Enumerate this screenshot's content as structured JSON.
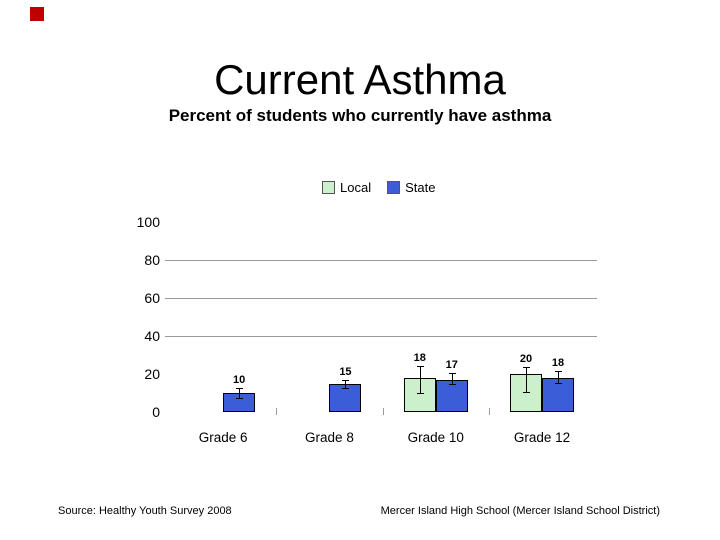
{
  "slide": {
    "title": "Current Asthma",
    "subtitle": "Percent of students who currently have asthma",
    "footer_left": "Source: Healthy Youth Survey 2008",
    "footer_right": "Mercer Island High School (Mercer Island School District)",
    "accent_color": "#c00000"
  },
  "chart_data": {
    "type": "bar",
    "title": "Current Asthma",
    "subtitle": "Percent of students who currently have asthma",
    "categories": [
      "Grade 6",
      "Grade 8",
      "Grade 10",
      "Grade 12"
    ],
    "series": [
      {
        "name": "Local",
        "color": "#ccf0cc",
        "values": [
          null,
          null,
          18,
          20
        ],
        "ci": [
          null,
          null,
          [
            10,
            24
          ],
          [
            10.5,
            23.5
          ]
        ]
      },
      {
        "name": "State",
        "color": "#3b5ed8",
        "values": [
          10,
          15,
          17,
          18
        ],
        "ci": [
          [
            7.5,
            12.5
          ],
          [
            12.5,
            17
          ],
          [
            14.5,
            20.5
          ],
          [
            15.5,
            21.5
          ]
        ]
      }
    ],
    "ylim": [
      0,
      100
    ],
    "yticks": [
      0,
      20,
      40,
      60,
      80,
      100
    ],
    "gridlines": [
      40,
      60,
      80
    ],
    "grid_color": "#9a9a9a",
    "bar_border_color": "#000000",
    "legend_position": "top",
    "value_labels": true
  }
}
